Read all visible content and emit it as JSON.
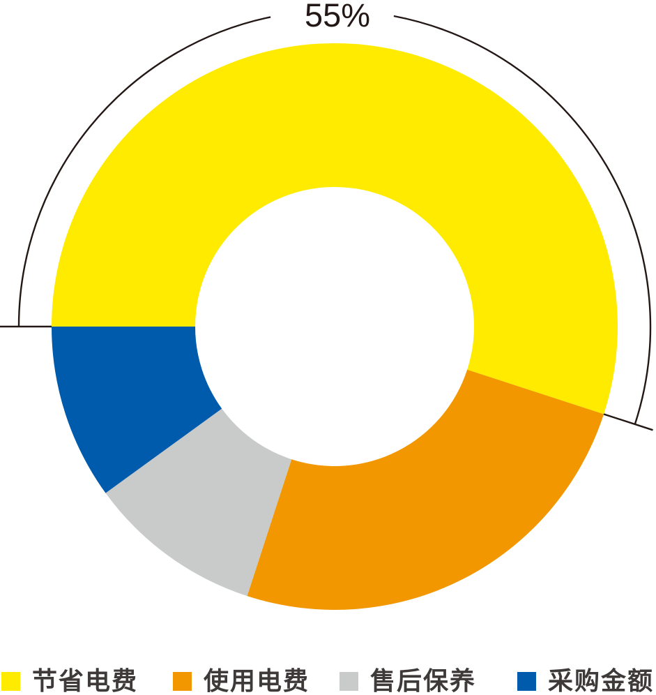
{
  "chart_data": {
    "type": "pie",
    "subtype": "donut",
    "title": "",
    "categories": [
      "节省电费",
      "使用电费",
      "售后保养",
      "采购金额"
    ],
    "values": [
      55,
      25,
      10,
      10
    ],
    "unit": "%",
    "colors": [
      "#FFEB00",
      "#F39700",
      "#C9CACA",
      "#005BAC"
    ],
    "start_angle_clock_deg": 270,
    "direction": "clockwise",
    "legend_position": "bottom",
    "background_color": "#FFFFFF",
    "legend_text_color": "#3E3A39",
    "annotation": {
      "label": "55%",
      "segment_index": 0,
      "line_color": "#231815",
      "text_color": "#231815"
    }
  }
}
